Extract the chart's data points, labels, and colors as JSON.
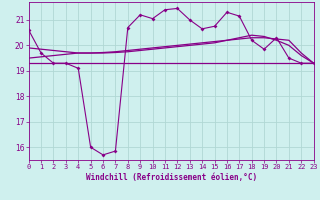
{
  "xlabel": "Windchill (Refroidissement éolien,°C)",
  "background_color": "#cff0ee",
  "grid_color": "#b0d8d4",
  "line_color": "#880088",
  "x_labels": [
    "0",
    "1",
    "2",
    "3",
    "4",
    "5",
    "6",
    "7",
    "8",
    "9",
    "10",
    "11",
    "12",
    "13",
    "14",
    "15",
    "16",
    "17",
    "18",
    "19",
    "20",
    "21",
    "22",
    "23"
  ],
  "xlim": [
    0,
    23
  ],
  "ylim": [
    15.5,
    21.7
  ],
  "yticks": [
    16,
    17,
    18,
    19,
    20,
    21
  ],
  "series1": [
    20.6,
    19.7,
    19.3,
    19.3,
    19.1,
    16.0,
    15.7,
    15.85,
    20.7,
    21.2,
    21.05,
    21.4,
    21.45,
    21.0,
    20.65,
    20.75,
    21.3,
    21.15,
    20.2,
    19.85,
    20.3,
    19.5,
    19.3,
    19.3
  ],
  "series2": [
    19.3,
    19.3,
    19.3,
    19.3,
    19.3,
    19.3,
    19.3,
    19.3,
    19.3,
    19.3,
    19.3,
    19.3,
    19.3,
    19.3,
    19.3,
    19.3,
    19.3,
    19.3,
    19.3,
    19.3,
    19.3,
    19.3,
    19.3,
    19.3
  ],
  "series3": [
    19.5,
    19.55,
    19.6,
    19.65,
    19.7,
    19.7,
    19.72,
    19.75,
    19.8,
    19.85,
    19.9,
    19.95,
    20.0,
    20.05,
    20.1,
    20.15,
    20.2,
    20.25,
    20.3,
    20.3,
    20.25,
    20.2,
    19.7,
    19.3
  ],
  "series4": [
    19.9,
    19.85,
    19.8,
    19.75,
    19.7,
    19.7,
    19.7,
    19.72,
    19.75,
    19.8,
    19.85,
    19.9,
    19.95,
    20.0,
    20.05,
    20.1,
    20.2,
    20.3,
    20.4,
    20.35,
    20.2,
    20.0,
    19.6,
    19.3
  ]
}
